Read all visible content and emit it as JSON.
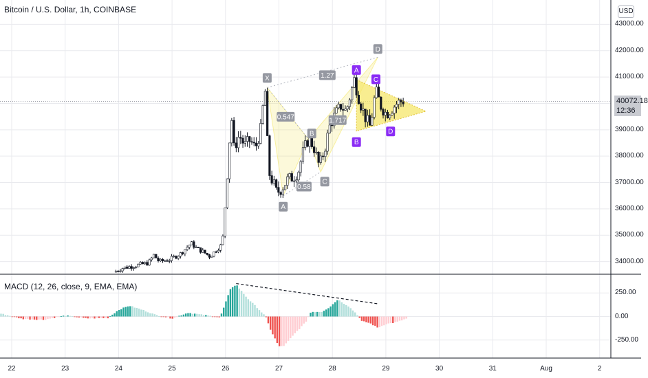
{
  "title": "Bitcoin / U.S. Dollar, 1h, COINBASE",
  "currency_button": "USD",
  "price_tag": {
    "price": "40072.18",
    "countdown": "12:36"
  },
  "macd_title": "MACD (12, 26, close, 9, EMA, EMA)",
  "colors": {
    "up": "#26a69a",
    "down": "#ef5350",
    "grid": "#e9eaee",
    "pattern_fill": "#f5e76b",
    "pattern_label": "#8b2cf5",
    "label_gray": "#9598a1"
  },
  "chart_data": {
    "type": "candlestick",
    "price_axis": {
      "range": [
        33600,
        43400
      ],
      "ticks": [
        {
          "v": 43000,
          "label": "43000.00"
        },
        {
          "v": 42000,
          "label": "42000.00"
        },
        {
          "v": 41000,
          "label": "41000.00"
        },
        {
          "v": 39000,
          "label": "39000.00"
        },
        {
          "v": 38000,
          "label": "38000.00"
        },
        {
          "v": 37000,
          "label": "37000.00"
        },
        {
          "v": 36000,
          "label": "36000.00"
        },
        {
          "v": 35000,
          "label": "35000.00"
        },
        {
          "v": 34000,
          "label": "34000.00"
        }
      ]
    },
    "macd_axis": {
      "range": [
        -420,
        420
      ],
      "ticks": [
        {
          "v": 250,
          "label": "250.00"
        },
        {
          "v": 0,
          "label": "0.00"
        },
        {
          "v": -250,
          "label": "-250.00"
        }
      ]
    },
    "x_axis": {
      "unit": "day",
      "range": [
        21.8,
        2.2
      ],
      "ticks": [
        {
          "t": 22,
          "label": "22"
        },
        {
          "t": 23,
          "label": "23"
        },
        {
          "t": 24,
          "label": "24"
        },
        {
          "t": 25,
          "label": "25"
        },
        {
          "t": 26,
          "label": "26"
        },
        {
          "t": 27,
          "label": "27"
        },
        {
          "t": 28,
          "label": "28"
        },
        {
          "t": 29,
          "label": "29"
        },
        {
          "t": 30,
          "label": "30"
        },
        {
          "t": 31,
          "label": "31"
        },
        {
          "t": 32,
          "label": "Aug"
        },
        {
          "t": 33,
          "label": "2"
        }
      ]
    },
    "price_path": [
      [
        23.95,
        33600
      ],
      [
        24.1,
        33750
      ],
      [
        24.4,
        33870
      ],
      [
        24.6,
        33950
      ],
      [
        24.7,
        34250
      ],
      [
        24.8,
        34000
      ],
      [
        25.0,
        34080
      ],
      [
        25.2,
        34300
      ],
      [
        25.3,
        34500
      ],
      [
        25.4,
        34700
      ],
      [
        25.5,
        34500
      ],
      [
        25.6,
        34400
      ],
      [
        25.75,
        34200
      ],
      [
        25.85,
        34400
      ],
      [
        25.95,
        34600
      ],
      [
        26.0,
        35000
      ],
      [
        26.05,
        36600
      ],
      [
        26.1,
        38100
      ],
      [
        26.15,
        39600
      ],
      [
        26.2,
        38300
      ],
      [
        26.3,
        38800
      ],
      [
        26.4,
        38400
      ],
      [
        26.5,
        38600
      ],
      [
        26.6,
        38300
      ],
      [
        26.7,
        39000
      ],
      [
        26.78,
        40600
      ],
      [
        26.85,
        37400
      ],
      [
        26.95,
        36900
      ],
      [
        27.0,
        36600
      ],
      [
        27.1,
        36800
      ],
      [
        27.2,
        37100
      ],
      [
        27.3,
        37200
      ],
      [
        27.4,
        37400
      ],
      [
        27.5,
        38200
      ],
      [
        27.6,
        38700
      ],
      [
        27.7,
        38300
      ],
      [
        27.8,
        37600
      ],
      [
        27.9,
        38300
      ],
      [
        28.0,
        39200
      ],
      [
        28.1,
        39600
      ],
      [
        28.2,
        39900
      ],
      [
        28.3,
        39700
      ],
      [
        28.45,
        40900
      ],
      [
        28.55,
        40100
      ],
      [
        28.65,
        39500
      ],
      [
        28.75,
        39100
      ],
      [
        28.85,
        40500
      ],
      [
        28.95,
        39900
      ],
      [
        29.05,
        39600
      ],
      [
        29.15,
        39800
      ],
      [
        29.25,
        40000
      ],
      [
        29.35,
        40100
      ]
    ],
    "macd_histogram_path": [
      [
        21.8,
        30
      ],
      [
        22.2,
        -25
      ],
      [
        22.6,
        -35
      ],
      [
        23.0,
        10
      ],
      [
        23.4,
        -20
      ],
      [
        23.8,
        -15
      ],
      [
        24.0,
        70
      ],
      [
        24.2,
        115
      ],
      [
        24.45,
        70
      ],
      [
        24.7,
        15
      ],
      [
        25.0,
        -20
      ],
      [
        25.3,
        40
      ],
      [
        25.6,
        15
      ],
      [
        25.9,
        -10
      ],
      [
        26.1,
        300
      ],
      [
        26.2,
        340
      ],
      [
        26.4,
        200
      ],
      [
        26.6,
        90
      ],
      [
        26.75,
        0
      ],
      [
        26.85,
        -150
      ],
      [
        27.0,
        -320
      ],
      [
        27.1,
        -310
      ],
      [
        27.3,
        -180
      ],
      [
        27.5,
        -60
      ],
      [
        27.6,
        50
      ],
      [
        27.8,
        50
      ],
      [
        27.95,
        100
      ],
      [
        28.1,
        180
      ],
      [
        28.3,
        110
      ],
      [
        28.45,
        30
      ],
      [
        28.55,
        -50
      ],
      [
        28.7,
        -70
      ],
      [
        28.85,
        -120
      ],
      [
        29.0,
        -80
      ],
      [
        29.2,
        -60
      ],
      [
        29.4,
        -20
      ]
    ],
    "macd_trendline": {
      "from": [
        26.2,
        350
      ],
      "to": [
        28.85,
        135
      ]
    },
    "patterns": [
      {
        "name": "XABCD",
        "points": [
          {
            "label": "X",
            "t": 26.78,
            "v": 40600
          },
          {
            "label": "A",
            "t": 27.08,
            "v": 36500
          },
          {
            "label": "B",
            "t": 27.55,
            "v": 38650
          },
          {
            "label": "C",
            "t": 27.78,
            "v": 37400
          },
          {
            "label": "D",
            "t": 28.85,
            "v": 41750
          }
        ],
        "ratios": [
          "0.547",
          "0.58",
          "1.27",
          "1.717"
        ]
      },
      {
        "name": "triangle",
        "points": [
          {
            "label": "A",
            "t": 28.45,
            "v": 40900
          },
          {
            "label": "B",
            "t": 28.45,
            "v": 38950
          },
          {
            "label": "C",
            "t": 28.75,
            "v": 40550
          },
          {
            "label": "D",
            "t": 29.05,
            "v": 39250
          }
        ],
        "apex": {
          "t": 29.75,
          "v": 39700
        }
      }
    ]
  }
}
